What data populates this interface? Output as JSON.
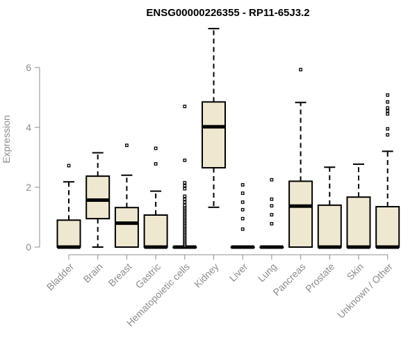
{
  "chart_data": {
    "type": "boxplot",
    "title": "ENSG00000226355 - RP11-65J3.2",
    "xlabel": "",
    "ylabel": "Expression",
    "ylim": [
      0,
      7.4
    ],
    "yticks": [
      0,
      2,
      4,
      6
    ],
    "box_fill": "#efe8d0",
    "categories": [
      "Bladder",
      "Brain",
      "Breast",
      "Gastric",
      "Hematopoietic cells",
      "Kidney",
      "Liver",
      "Lung",
      "Pancreas",
      "Prostate",
      "Skin",
      "Unknown / Other"
    ],
    "boxes": [
      {
        "min": 0,
        "q1": 0,
        "median": 0,
        "q3": 0.9,
        "max": 2.18,
        "outliers": [
          2.72
        ]
      },
      {
        "min": 0,
        "q1": 0.95,
        "median": 1.57,
        "q3": 2.37,
        "max": 3.15,
        "outliers": []
      },
      {
        "min": 0,
        "q1": 0,
        "median": 0.8,
        "q3": 1.32,
        "max": 2.4,
        "outliers": [
          3.4
        ]
      },
      {
        "min": 0,
        "q1": 0,
        "median": 0,
        "q3": 1.07,
        "max": 1.87,
        "outliers": [
          2.78,
          3.3
        ]
      },
      {
        "min": 0,
        "q1": 0,
        "median": 0,
        "q3": 0,
        "max": 0,
        "outliers": [
          0.05,
          0.1,
          0.15,
          0.2,
          0.25,
          0.3,
          0.35,
          0.4,
          0.45,
          0.5,
          0.55,
          0.6,
          0.65,
          0.7,
          0.75,
          0.8,
          0.85,
          0.9,
          0.95,
          1.0,
          1.05,
          1.1,
          1.15,
          1.2,
          1.25,
          1.3,
          1.35,
          1.4,
          1.5,
          1.6,
          1.7,
          1.95,
          2.05,
          2.15,
          2.9,
          4.7
        ]
      },
      {
        "min": 1.33,
        "q1": 2.65,
        "median": 4.02,
        "q3": 4.85,
        "max": 7.3,
        "outliers": []
      },
      {
        "min": 0,
        "q1": 0,
        "median": 0,
        "q3": 0,
        "max": 0,
        "outliers": [
          0.6,
          0.95,
          1.25,
          1.5,
          1.8,
          2.08
        ]
      },
      {
        "min": 0,
        "q1": 0,
        "median": 0,
        "q3": 0,
        "max": 0,
        "outliers": [
          0.78,
          1.08,
          1.38,
          1.6,
          2.25
        ]
      },
      {
        "min": 0,
        "q1": 0,
        "median": 1.37,
        "q3": 2.2,
        "max": 4.83,
        "outliers": [
          5.93
        ]
      },
      {
        "min": 0,
        "q1": 0,
        "median": 0,
        "q3": 1.4,
        "max": 2.67,
        "outliers": []
      },
      {
        "min": 0,
        "q1": 0,
        "median": 0,
        "q3": 1.67,
        "max": 2.77,
        "outliers": []
      },
      {
        "min": 0,
        "q1": 0,
        "median": 0,
        "q3": 1.35,
        "max": 3.2,
        "outliers": [
          3.75,
          3.95,
          4.45,
          4.55,
          4.65,
          4.85,
          5.08
        ]
      }
    ]
  }
}
